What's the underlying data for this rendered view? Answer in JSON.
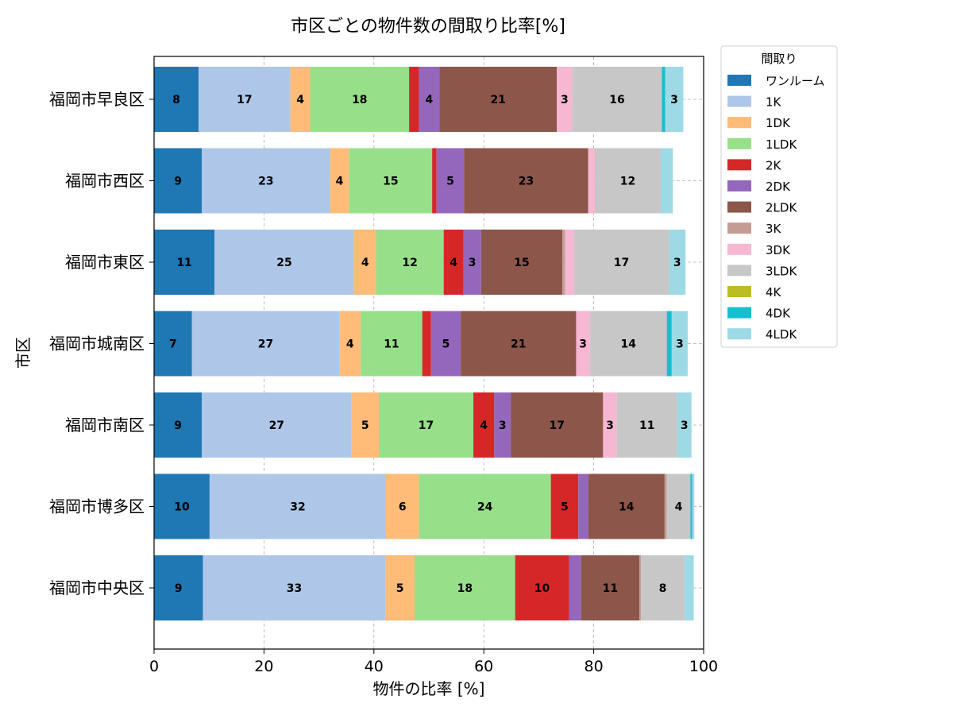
{
  "chart_data": {
    "type": "bar",
    "orientation": "horizontal",
    "stacked": true,
    "title": "市区ごとの物件数の間取り比率[%]",
    "xlabel": "物件の比率 [%]",
    "ylabel": "市区",
    "xlim": [
      0,
      100
    ],
    "xticks": [
      "0",
      "20",
      "40",
      "60",
      "80",
      "100"
    ],
    "grid": true,
    "legend_title": "間取り",
    "legend_position": "outside-top-right",
    "categories": [
      "福岡市早良区",
      "福岡市西区",
      "福岡市東区",
      "福岡市城南区",
      "福岡市南区",
      "福岡市博多区",
      "福岡市中央区"
    ],
    "series": [
      {
        "name": "ワンルーム",
        "color": "#1f77b4",
        "values": [
          8.1,
          8.7,
          11.0,
          6.9,
          8.7,
          10.1,
          8.9
        ]
      },
      {
        "name": "1K",
        "color": "#aec7e8",
        "values": [
          16.7,
          23.3,
          25.4,
          26.8,
          27.2,
          32.1,
          33.2
        ]
      },
      {
        "name": "1DK",
        "color": "#ffbb78",
        "values": [
          3.6,
          3.5,
          4.0,
          3.9,
          5.0,
          6.0,
          5.3
        ]
      },
      {
        "name": "1LDK",
        "color": "#98df8a",
        "values": [
          18.0,
          15.1,
          12.3,
          11.2,
          17.2,
          24.0,
          18.3
        ]
      },
      {
        "name": "2K",
        "color": "#d62728",
        "values": [
          1.8,
          0.8,
          3.6,
          1.6,
          3.8,
          5.0,
          9.8
        ]
      },
      {
        "name": "2DK",
        "color": "#9467bd",
        "values": [
          3.7,
          5.0,
          3.2,
          5.4,
          3.0,
          1.8,
          2.2
        ]
      },
      {
        "name": "2LDK",
        "color": "#8c564b",
        "values": [
          21.4,
          22.6,
          14.8,
          21.0,
          16.8,
          13.9,
          10.6
        ]
      },
      {
        "name": "3K",
        "color": "#c49c94",
        "values": [
          0.0,
          0.0,
          0.5,
          0.0,
          0.0,
          0.4,
          0.3
        ]
      },
      {
        "name": "3DK",
        "color": "#f7b6d2",
        "values": [
          2.8,
          1.2,
          1.6,
          2.5,
          2.5,
          0.0,
          0.0
        ]
      },
      {
        "name": "3LDK",
        "color": "#c7c7c7",
        "values": [
          16.3,
          12.0,
          17.3,
          14.0,
          11.0,
          4.3,
          7.9
        ]
      },
      {
        "name": "4K",
        "color": "#bcbd22",
        "values": [
          0.0,
          0.0,
          0.0,
          0.0,
          0.0,
          0.0,
          0.0
        ]
      },
      {
        "name": "4DK",
        "color": "#17becf",
        "values": [
          0.6,
          0.0,
          0.0,
          0.9,
          0.0,
          0.3,
          0.0
        ]
      },
      {
        "name": "4LDK",
        "color": "#9edae5",
        "values": [
          3.3,
          2.2,
          3.0,
          2.9,
          2.6,
          0.4,
          1.7
        ]
      }
    ]
  }
}
